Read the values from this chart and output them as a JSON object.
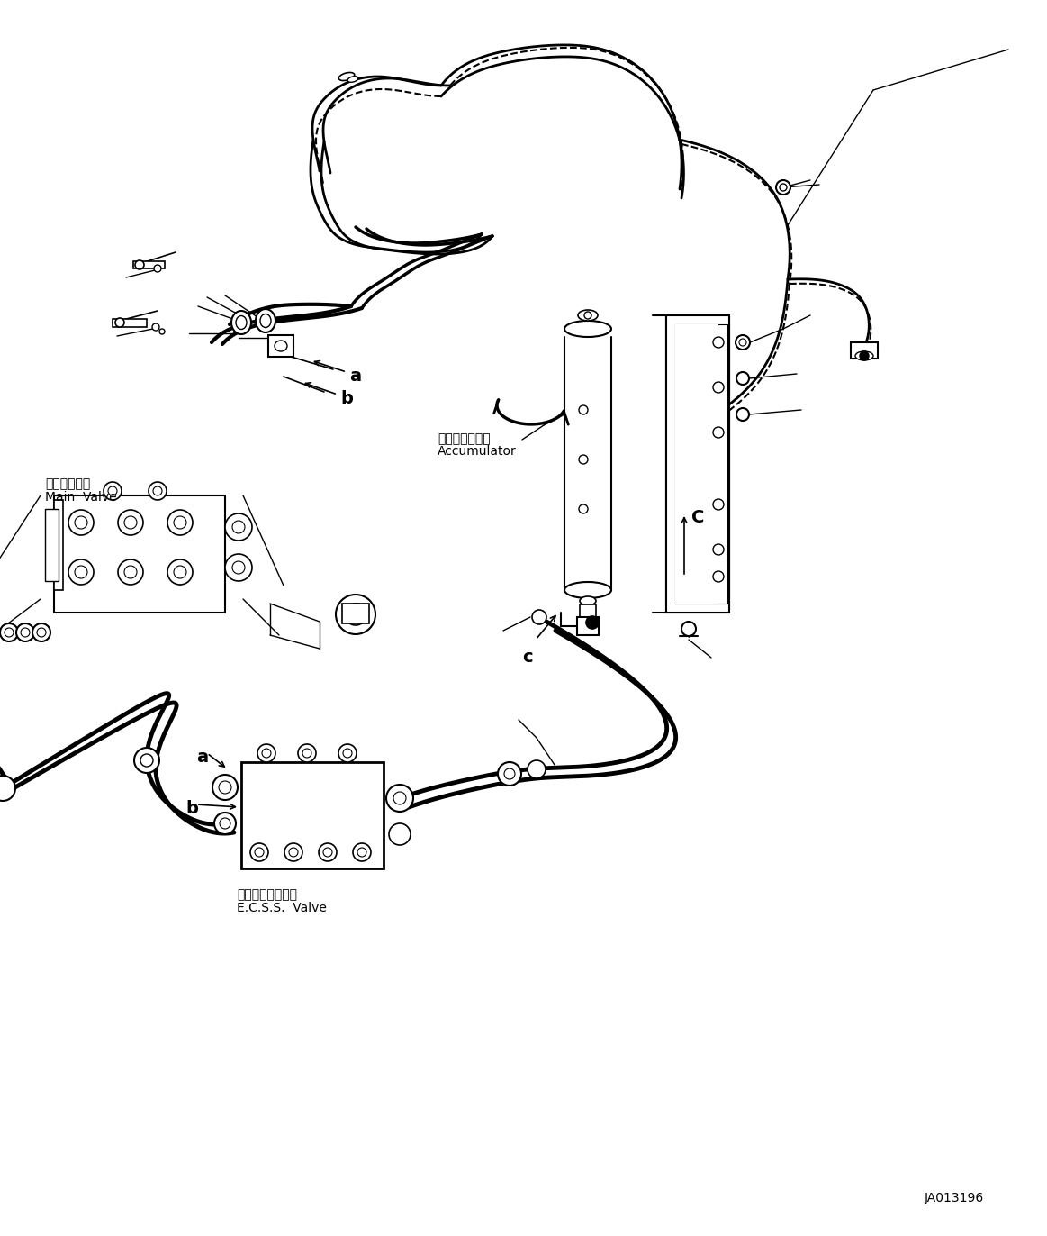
{
  "background_color": "#ffffff",
  "line_color": "#000000",
  "part_number": "JA013196",
  "labels": {
    "main_valve_jp": "メインバルブ",
    "main_valve_en": "Main  Valve",
    "accumulator_jp": "アキュムレータ",
    "accumulator_en": "Accumulator",
    "ecss_valve_jp": "走行ダンパバルブ",
    "ecss_valve_en": "E.C.S.S.  Valve"
  },
  "fig_width": 11.63,
  "fig_height": 13.72
}
